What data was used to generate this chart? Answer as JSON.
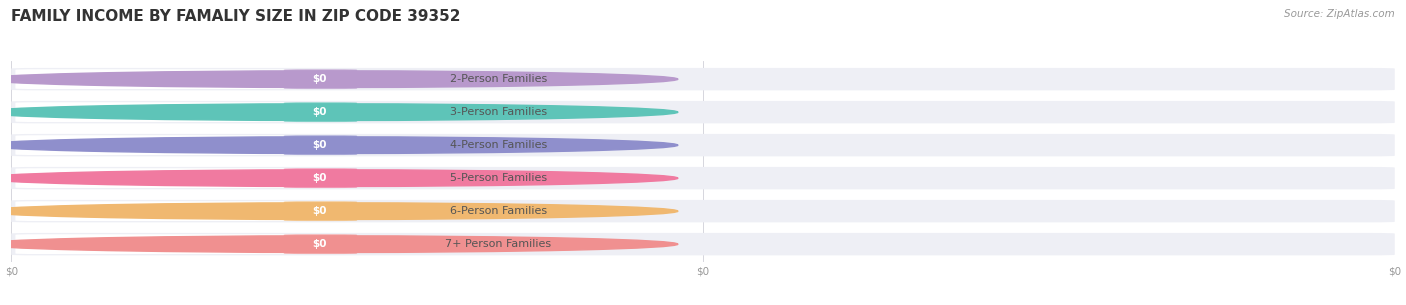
{
  "title": "FAMILY INCOME BY FAMALIY SIZE IN ZIP CODE 39352",
  "source_text": "Source: ZipAtlas.com",
  "categories": [
    "2-Person Families",
    "3-Person Families",
    "4-Person Families",
    "5-Person Families",
    "6-Person Families",
    "7+ Person Families"
  ],
  "values": [
    0,
    0,
    0,
    0,
    0,
    0
  ],
  "bar_colors": [
    "#b899cc",
    "#5ec4b8",
    "#8f8fcc",
    "#f07aa0",
    "#f0b870",
    "#f09090"
  ],
  "bar_bg_color": "#eeeff5",
  "label_text_color": "#555555",
  "value_label": "$0",
  "x_tick_labels": [
    "$0",
    "$0",
    "$0"
  ],
  "x_tick_positions": [
    0.0,
    0.5,
    1.0
  ],
  "xlim": [
    0,
    1
  ],
  "background_color": "#ffffff",
  "title_fontsize": 11,
  "label_fontsize": 8,
  "source_fontsize": 7.5,
  "figsize": [
    14.06,
    3.05
  ],
  "dpi": 100
}
